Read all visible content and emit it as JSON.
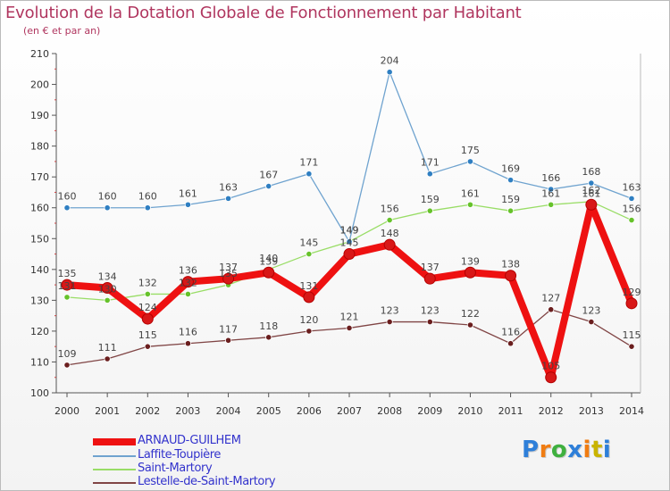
{
  "title": "Evolution de la Dotation Globale de Fonctionnement par Habitant",
  "subtitle": "(en € et par an)",
  "logo": {
    "letters": [
      "P",
      "r",
      "o",
      "x",
      "i",
      "t",
      "i"
    ],
    "colors": [
      "#2e7fd9",
      "#f07c12",
      "#3fb03f",
      "#2e7fd9",
      "#f07c12",
      "#c9b400",
      "#2e7fd9"
    ]
  },
  "chart_data": {
    "type": "line",
    "title": "Evolution de la Dotation Globale de Fonctionnement par Habitant",
    "subtitle": "(en € et par an)",
    "xlabel": "",
    "ylabel": "",
    "x": [
      "2000",
      "2001",
      "2002",
      "2003",
      "2004",
      "2005",
      "2006",
      "2007",
      "2008",
      "2009",
      "2010",
      "2011",
      "2012",
      "2013",
      "2014"
    ],
    "ylim": [
      100,
      210
    ],
    "yticks": [
      "100",
      "110",
      "120",
      "130",
      "140",
      "150",
      "160",
      "170",
      "180",
      "190",
      "200",
      "210"
    ],
    "grid": false,
    "legend_position": "bottom-left",
    "series": [
      {
        "name": "ARNAUD-GUILHEM",
        "color": "#ee1111",
        "marker": "#d81818",
        "bold": true,
        "values": [
          135,
          134,
          124,
          136,
          137,
          139,
          131,
          145,
          148,
          137,
          139,
          138,
          105,
          161,
          129
        ],
        "labels": [
          "135",
          "134",
          "124",
          "136",
          "137",
          "139",
          "131",
          "145",
          "148",
          "137",
          "139",
          "138",
          "105",
          "161",
          "129"
        ]
      },
      {
        "name": "Laffite-Toupière",
        "color": "#6fa3cf",
        "marker": "#2f7fc2",
        "values": [
          160,
          160,
          160,
          161,
          163,
          167,
          171,
          149,
          204,
          171,
          175,
          169,
          166,
          168,
          163
        ],
        "labels": [
          "160",
          "160",
          "160",
          "161",
          "163",
          "167",
          "171",
          "149",
          "204",
          "171",
          "175",
          "169",
          "166",
          "168",
          "163"
        ]
      },
      {
        "name": "Saint-Martory",
        "color": "#99dd66",
        "marker": "#66c22a",
        "values": [
          131,
          130,
          132,
          132,
          135,
          140,
          145,
          149,
          156,
          159,
          161,
          159,
          161,
          162,
          156
        ],
        "labels": [
          "131",
          "130",
          "132",
          "132",
          "135",
          "140",
          "145",
          "149",
          "156",
          "159",
          "161",
          "159",
          "161",
          "162",
          "156"
        ]
      },
      {
        "name": "Lestelle-de-Saint-Martory",
        "color": "#804545",
        "marker": "#6a1e1e",
        "values": [
          109,
          111,
          115,
          116,
          117,
          118,
          120,
          121,
          123,
          123,
          122,
          116,
          127,
          123,
          115
        ],
        "labels": [
          "109",
          "111",
          "115",
          "116",
          "117",
          "118",
          "120",
          "121",
          "123",
          "123",
          "122",
          "116",
          "127",
          "123",
          "115"
        ]
      }
    ]
  }
}
